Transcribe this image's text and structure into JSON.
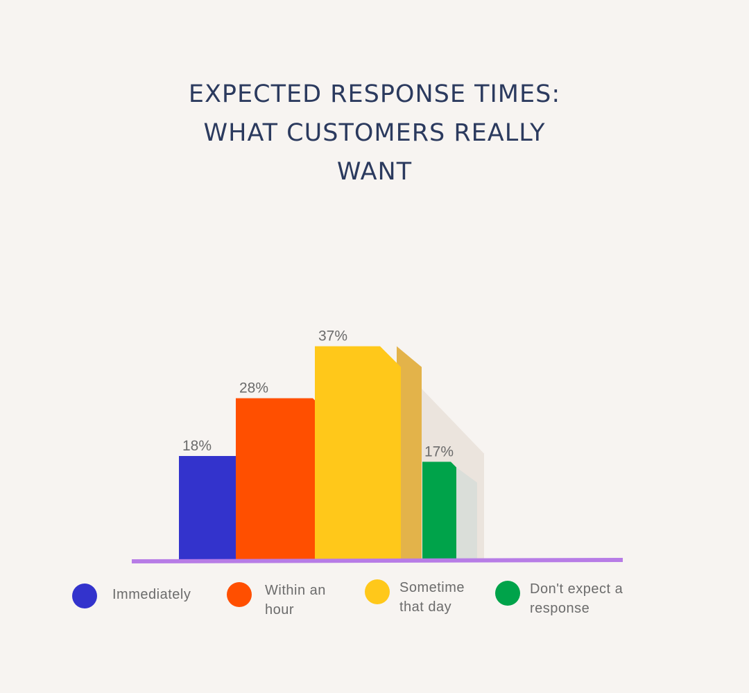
{
  "title_lines": [
    "EXPECTED RESPONSE TIMES:",
    "WHAT CUSTOMERS REALLY",
    "WANT"
  ],
  "chart_data": {
    "type": "bar",
    "categories": [
      "Immediately",
      "Within an hour",
      "Sometime that day",
      "Don't expect a response"
    ],
    "values": [
      18,
      28,
      37,
      17
    ],
    "value_labels": [
      "18%",
      "28%",
      "37%",
      "17%"
    ],
    "colors": [
      "#3333cc",
      "#ff4f00",
      "#ffc81a",
      "#00a34a"
    ],
    "legend_placement": "bottom",
    "grid": false
  },
  "legend": [
    {
      "lines": [
        "Immediately"
      ],
      "color": "#3333cc"
    },
    {
      "lines": [
        "Within an",
        "hour"
      ],
      "color": "#ff4f00"
    },
    {
      "lines": [
        "Sometime",
        "that day"
      ],
      "color": "#ffc81a"
    },
    {
      "lines": [
        "Don't expect a",
        "response"
      ],
      "color": "#00a34a"
    }
  ],
  "axis_color": "#b77ce6"
}
